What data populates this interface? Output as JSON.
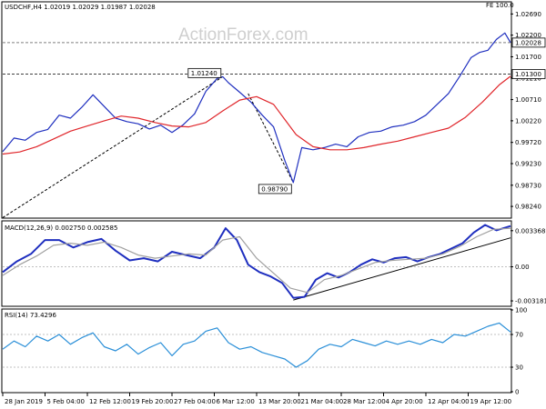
{
  "chart_data": [
    {
      "type": "line",
      "panel": "price",
      "header": "USDCHF,H4  1.02019 1.02029 1.01987 1.02028",
      "corner_label": "FE 100.0",
      "watermark": "ActionForex.com",
      "ylim": [
        0.9799,
        1.0295
      ],
      "yticks": [
        "1.02690",
        "1.02200",
        "1.01700",
        "1.01210",
        "1.00710",
        "1.00220",
        "0.99720",
        "0.99230",
        "0.98730",
        "0.98240"
      ],
      "ytick_values": [
        1.0269,
        1.022,
        1.017,
        1.0121,
        1.0071,
        1.0022,
        0.9972,
        0.9923,
        0.9873,
        0.9824
      ],
      "xlim": [
        0,
        180
      ],
      "series": [
        {
          "name": "",
          "color": "#1f2fbf",
          "x": [
            0,
            4,
            8,
            12,
            16,
            20,
            24,
            28,
            32,
            36,
            40,
            44,
            48,
            52,
            56,
            60,
            64,
            68,
            72,
            76,
            78,
            80,
            84,
            88,
            92,
            96,
            100,
            103,
            106,
            110,
            114,
            118,
            122,
            126,
            130,
            134,
            138,
            142,
            146,
            150,
            154,
            158,
            162,
            166,
            169,
            172,
            175,
            178,
            180
          ],
          "y": [
            0.9951,
            0.9982,
            0.9977,
            0.9995,
            1.0002,
            1.0035,
            1.0028,
            1.0053,
            1.0082,
            1.0055,
            1.0028,
            1.002,
            1.0015,
            1.0003,
            1.0012,
            0.9995,
            1.0013,
            1.0038,
            1.009,
            1.012,
            1.0124,
            1.011,
            1.0088,
            1.0065,
            1.0035,
            1.0008,
            0.993,
            0.9879,
            0.996,
            0.9955,
            0.996,
            0.9968,
            0.9962,
            0.9985,
            0.9995,
            0.9998,
            1.0008,
            1.0012,
            1.002,
            1.0035,
            1.006,
            1.0085,
            1.0125,
            1.0168,
            1.018,
            1.0185,
            1.021,
            1.0225,
            1.0203
          ]
        },
        {
          "name": "",
          "color": "#e0262b",
          "x": [
            0,
            6,
            12,
            18,
            24,
            30,
            36,
            42,
            48,
            54,
            60,
            66,
            72,
            78,
            84,
            90,
            96,
            100,
            104,
            110,
            116,
            122,
            128,
            134,
            140,
            146,
            152,
            158,
            164,
            170,
            176,
            180
          ],
          "y": [
            0.9945,
            0.995,
            0.9962,
            0.998,
            0.9998,
            1.001,
            1.0022,
            1.0033,
            1.0028,
            1.0018,
            1.001,
            1.0008,
            1.0018,
            1.0045,
            1.007,
            1.0078,
            1.006,
            1.0025,
            0.999,
            0.9962,
            0.9955,
            0.9955,
            0.996,
            0.9968,
            0.9975,
            0.9985,
            0.9995,
            1.0005,
            1.003,
            1.0065,
            1.0105,
            1.0125
          ]
        }
      ],
      "hlines": [
        {
          "label": "1.02028",
          "value": 1.02028,
          "color": "#808080"
        },
        {
          "label": "1.01300",
          "value": 1.013,
          "color": "#404040"
        }
      ],
      "annotations": [
        {
          "label": "1.01240",
          "x": 78,
          "y": 1.0124
        },
        {
          "label": "0.98790",
          "x": 103,
          "y": 0.9879
        }
      ],
      "trendlines": [
        {
          "x": [
            0,
            78
          ],
          "y": [
            0.9798,
            1.0124
          ],
          "style": "dashed"
        },
        {
          "x": [
            87,
            103
          ],
          "y": [
            1.0085,
            0.9879
          ],
          "style": "dashed"
        }
      ]
    },
    {
      "type": "line",
      "panel": "macd",
      "header": "MACD(12,26,9) 0.002750 0.002585",
      "ylim": [
        -0.0036,
        0.0042
      ],
      "yticks": [
        "0.003368",
        "0.00",
        "-0.003181"
      ],
      "ytick_values": [
        0.003368,
        0.0,
        -0.003181
      ],
      "xlim": [
        0,
        180
      ],
      "series": [
        {
          "name": "",
          "color": "#1f2fbf",
          "x": [
            0,
            5,
            10,
            15,
            20,
            25,
            30,
            35,
            40,
            45,
            50,
            55,
            60,
            65,
            70,
            75,
            79,
            83,
            87,
            91,
            95,
            99,
            103,
            107,
            111,
            115,
            119,
            123,
            127,
            131,
            135,
            139,
            143,
            147,
            151,
            155,
            159,
            163,
            167,
            171,
            175,
            180
          ],
          "y": [
            -0.0005,
            0.0005,
            0.0012,
            0.0025,
            0.0025,
            0.0018,
            0.0023,
            0.0026,
            0.0015,
            0.0006,
            0.0008,
            0.0005,
            0.0014,
            0.0011,
            0.0008,
            0.0018,
            0.0036,
            0.0025,
            0.0002,
            -0.0005,
            -0.0009,
            -0.0015,
            -0.0029,
            -0.0028,
            -0.0012,
            -0.0006,
            -0.001,
            -0.0005,
            0.0002,
            0.0007,
            0.0004,
            0.0008,
            0.0009,
            0.0005,
            0.0009,
            0.0012,
            0.0017,
            0.0022,
            0.0032,
            0.0039,
            0.0034,
            0.0038
          ]
        },
        {
          "name": "",
          "color": "#a0a0a0",
          "x": [
            0,
            6,
            12,
            18,
            24,
            30,
            36,
            42,
            48,
            54,
            60,
            66,
            72,
            78,
            84,
            90,
            96,
            102,
            108,
            114,
            120,
            126,
            132,
            138,
            144,
            150,
            156,
            162,
            168,
            174,
            180
          ],
          "y": [
            -0.0008,
            0.0002,
            0.001,
            0.002,
            0.0022,
            0.002,
            0.0023,
            0.0018,
            0.0011,
            0.0008,
            0.001,
            0.0012,
            0.0011,
            0.0025,
            0.0028,
            0.0008,
            -0.0006,
            -0.002,
            -0.0024,
            -0.0012,
            -0.0008,
            -0.0002,
            0.0004,
            0.0006,
            0.0007,
            0.0008,
            0.0012,
            0.0019,
            0.0028,
            0.0035,
            0.0036
          ]
        }
      ],
      "trendlines": [
        {
          "x": [
            103,
            180
          ],
          "y": [
            -0.0031,
            0.0027
          ],
          "style": "solid"
        }
      ]
    },
    {
      "type": "line",
      "panel": "rsi",
      "header": "RSI(14) 73.4296",
      "ylim": [
        0,
        100
      ],
      "yticks": [
        "100",
        "70",
        "30",
        "0"
      ],
      "ytick_values": [
        100,
        70,
        30,
        0
      ],
      "xlim": [
        0,
        180
      ],
      "series": [
        {
          "name": "",
          "color": "#2a8fd8",
          "x": [
            0,
            4,
            8,
            12,
            16,
            20,
            24,
            28,
            32,
            36,
            40,
            44,
            48,
            52,
            56,
            60,
            64,
            68,
            72,
            76,
            80,
            84,
            88,
            92,
            96,
            100,
            104,
            108,
            112,
            116,
            120,
            124,
            128,
            132,
            136,
            140,
            144,
            148,
            152,
            156,
            160,
            164,
            168,
            172,
            176,
            180
          ],
          "y": [
            52,
            62,
            55,
            68,
            62,
            70,
            58,
            66,
            72,
            55,
            50,
            58,
            46,
            54,
            60,
            44,
            58,
            62,
            74,
            78,
            60,
            52,
            55,
            48,
            44,
            40,
            30,
            38,
            52,
            58,
            55,
            64,
            60,
            56,
            62,
            58,
            62,
            58,
            64,
            60,
            70,
            68,
            74,
            80,
            84,
            73
          ]
        }
      ]
    }
  ],
  "x_axis": {
    "labels": [
      "28 Jan 2019",
      "5 Feb 04:00",
      "12 Feb 12:00",
      "19 Feb 20:00",
      "27 Feb 04:00",
      "6 Mar 12:00",
      "13 Mar 20:00",
      "21 Mar 04:00",
      "28 Mar 12:00",
      "4 Apr 20:00",
      "12 Apr 04:00",
      "19 Apr 12:00"
    ],
    "positions": [
      0,
      15,
      30,
      45,
      60,
      75,
      90,
      105,
      120,
      135,
      150,
      165
    ]
  }
}
